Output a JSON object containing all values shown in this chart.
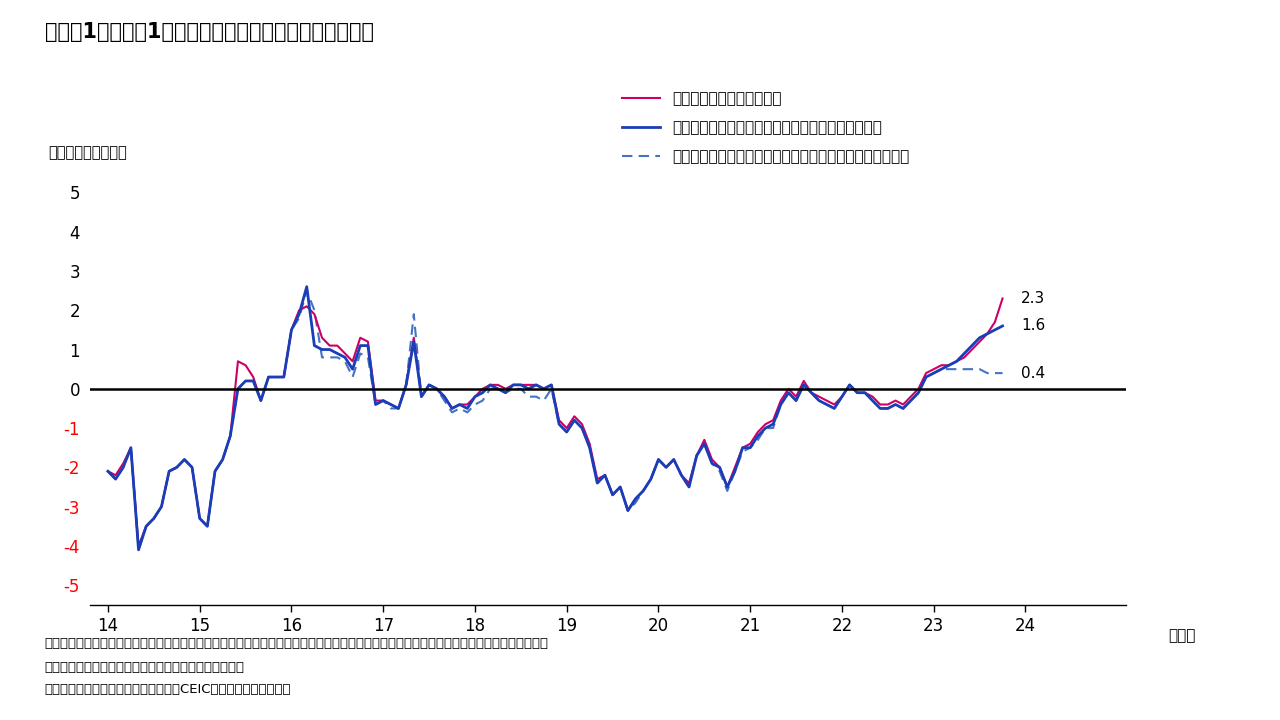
{
  "title": "（図表1）日本：1人あたり実質平均賃金増加率の試算値",
  "ylabel": "（前年同月比、％）",
  "xlabel_suffix": "（年）",
  "ylim": [
    -5.5,
    5.5
  ],
  "yticks": [
    -5,
    -4,
    -3,
    -2,
    -1,
    0,
    1,
    2,
    3,
    4,
    5
  ],
  "xticks": [
    14,
    15,
    16,
    17,
    18,
    19,
    20,
    21,
    22,
    23,
    24
  ],
  "background_color": "#ffffff",
  "legend_labels": [
    "１人あたり実質賃金試算値",
    "１人あたり実質賃金（公表値、共通事業所ベース）",
    "１人あたり実質賃金（公表値、共通事業所でないベース）"
  ],
  "line1_color": "#cc0066",
  "line2_color": "#1a3eb8",
  "line3_color": "#4472c4",
  "end_labels": [
    "2.3",
    "1.6",
    "0.4"
  ],
  "note_line1": "（注）試算値は、共通事業所ベースであり、毎月勤労統計より実質総賃金の伸び率を算出したうえで、労働力調査による雇用者数の伸び率を",
  "note_line2": "使用して１人あたり平均賃金の伸び率を算出したもの。",
  "note_line3": "（出所）毎月勤労統計や労働力調査、CEICからインベスコが試算",
  "series1": [
    -2.1,
    -2.2,
    -1.9,
    -1.5,
    -4.0,
    -3.5,
    -3.3,
    -3.0,
    -2.1,
    -2.0,
    -1.8,
    -2.0,
    -3.3,
    -3.5,
    -2.1,
    -1.8,
    -1.2,
    0.7,
    0.6,
    0.3,
    -0.3,
    0.3,
    0.3,
    0.3,
    1.5,
    2.0,
    2.1,
    1.9,
    1.3,
    1.1,
    1.1,
    0.9,
    0.7,
    1.3,
    1.2,
    -0.3,
    -0.3,
    -0.4,
    -0.5,
    0.1,
    1.3,
    -0.2,
    0.1,
    0.0,
    -0.2,
    -0.5,
    -0.4,
    -0.4,
    -0.2,
    0.0,
    0.1,
    0.1,
    0.0,
    0.1,
    0.1,
    0.1,
    0.1,
    0.0,
    0.1,
    -0.8,
    -1.0,
    -0.7,
    -0.9,
    -1.4,
    -2.3,
    -2.2,
    -2.7,
    -2.5,
    -3.1,
    -2.8,
    -2.6,
    -2.3,
    -1.8,
    -2.0,
    -1.8,
    -2.2,
    -2.4,
    -1.7,
    -1.3,
    -1.8,
    -2.0,
    -2.5,
    -2.0,
    -1.5,
    -1.4,
    -1.1,
    -0.9,
    -0.8,
    -0.3,
    0.0,
    -0.2,
    0.2,
    -0.1,
    -0.2,
    -0.3,
    -0.4,
    -0.2,
    0.1,
    -0.1,
    -0.1,
    -0.2,
    -0.4,
    -0.4,
    -0.3,
    -0.4,
    -0.2,
    0.0,
    0.4,
    0.5,
    0.6,
    0.6,
    0.7,
    0.8,
    1.0,
    1.2,
    1.4,
    1.7,
    2.3
  ],
  "series2": [
    -2.1,
    -2.3,
    -2.0,
    -1.5,
    -4.1,
    -3.5,
    -3.3,
    -3.0,
    -2.1,
    -2.0,
    -1.8,
    -2.0,
    -3.3,
    -3.5,
    -2.1,
    -1.8,
    -1.2,
    0.0,
    0.2,
    0.2,
    -0.3,
    0.3,
    0.3,
    0.3,
    1.5,
    1.9,
    2.6,
    1.1,
    1.0,
    1.0,
    0.9,
    0.8,
    0.5,
    1.1,
    1.1,
    -0.4,
    -0.3,
    -0.4,
    -0.5,
    0.1,
    1.2,
    -0.2,
    0.1,
    0.0,
    -0.2,
    -0.5,
    -0.4,
    -0.5,
    -0.2,
    -0.1,
    0.1,
    0.0,
    -0.1,
    0.1,
    0.1,
    0.0,
    0.1,
    0.0,
    0.1,
    -0.9,
    -1.1,
    -0.8,
    -1.0,
    -1.5,
    -2.4,
    -2.2,
    -2.7,
    -2.5,
    -3.1,
    -2.8,
    -2.6,
    -2.3,
    -1.8,
    -2.0,
    -1.8,
    -2.2,
    -2.5,
    -1.7,
    -1.4,
    -1.9,
    -2.0,
    -2.5,
    -2.1,
    -1.5,
    -1.5,
    -1.2,
    -1.0,
    -0.9,
    -0.4,
    -0.1,
    -0.3,
    0.1,
    -0.1,
    -0.3,
    -0.4,
    -0.5,
    -0.2,
    0.1,
    -0.1,
    -0.1,
    -0.3,
    -0.5,
    -0.5,
    -0.4,
    -0.5,
    -0.3,
    -0.1,
    0.3,
    0.4,
    0.5,
    0.6,
    0.7,
    0.9,
    1.1,
    1.3,
    1.4,
    1.5,
    1.6
  ],
  "series3": [
    -2.1,
    -2.3,
    -2.0,
    -1.5,
    -4.1,
    -3.5,
    -3.3,
    -3.0,
    -2.1,
    -2.0,
    -1.8,
    -2.0,
    -3.3,
    -3.5,
    -2.1,
    -1.8,
    -1.2,
    0.0,
    0.2,
    0.2,
    -0.3,
    0.3,
    0.3,
    0.3,
    1.5,
    1.8,
    2.5,
    2.0,
    0.8,
    0.8,
    0.8,
    0.7,
    0.3,
    0.9,
    0.8,
    -0.4,
    -0.3,
    -0.5,
    -0.5,
    0.1,
    1.9,
    -0.2,
    0.1,
    0.0,
    -0.3,
    -0.6,
    -0.5,
    -0.6,
    -0.4,
    -0.3,
    0.0,
    0.0,
    -0.1,
    0.0,
    0.0,
    -0.2,
    -0.2,
    -0.3,
    0.0,
    -0.9,
    -1.1,
    -0.8,
    -1.0,
    -1.5,
    -2.4,
    -2.2,
    -2.7,
    -2.5,
    -3.1,
    -2.9,
    -2.6,
    -2.3,
    -1.8,
    -2.0,
    -1.8,
    -2.2,
    -2.5,
    -1.7,
    -1.4,
    -1.9,
    -2.1,
    -2.6,
    -2.1,
    -1.6,
    -1.5,
    -1.3,
    -1.0,
    -1.0,
    -0.4,
    -0.1,
    -0.3,
    0.1,
    -0.1,
    -0.3,
    -0.4,
    -0.5,
    -0.2,
    0.1,
    -0.1,
    -0.1,
    -0.3,
    -0.5,
    -0.5,
    -0.4,
    -0.5,
    -0.3,
    -0.1,
    0.3,
    0.4,
    0.5,
    0.5,
    0.5,
    0.5,
    0.5,
    0.5,
    0.4,
    0.4,
    0.4
  ]
}
